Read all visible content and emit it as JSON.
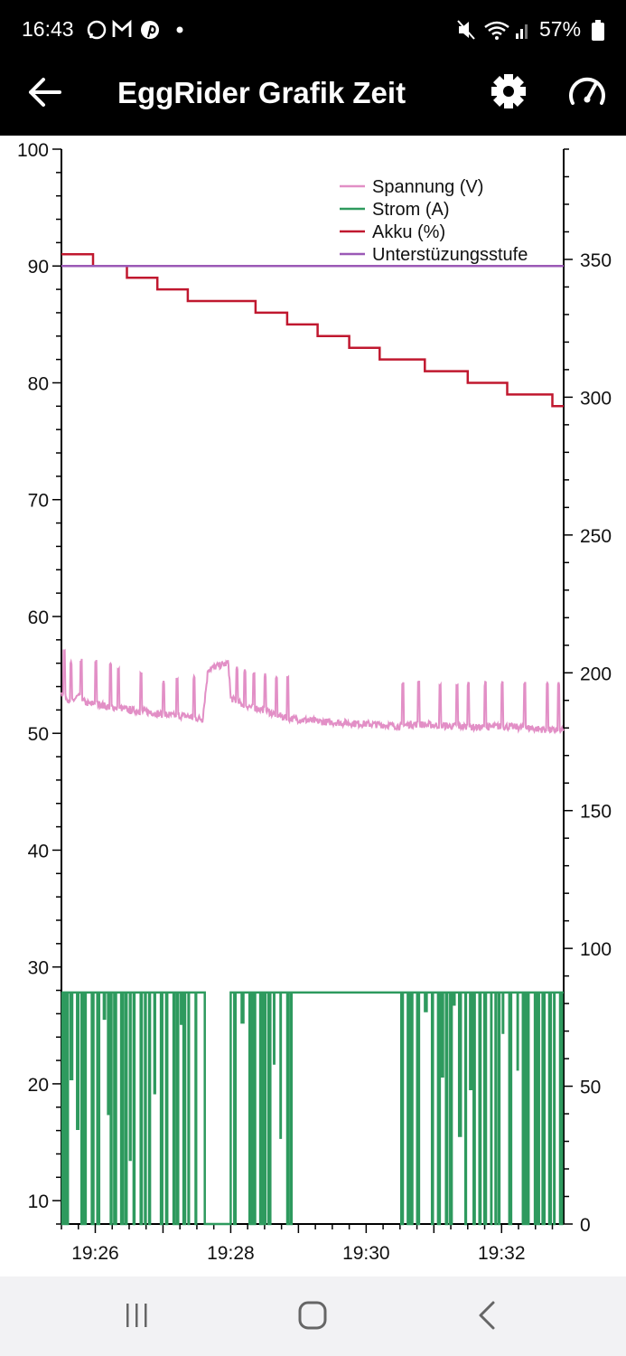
{
  "status_bar": {
    "time": "16:43",
    "battery_percent": "57%",
    "icons": [
      "whatsapp-icon",
      "gmail-icon",
      "pinterest-icon",
      "notification-dot",
      "mute-icon",
      "wifi-icon",
      "signal-icon",
      "battery-icon"
    ]
  },
  "app_bar": {
    "title": "EggRider Grafik Zeit",
    "back_icon": "arrow-left-icon",
    "settings_icon": "gear-icon",
    "speedometer_icon": "speedometer-icon"
  },
  "chart_data": {
    "type": "line",
    "title": "",
    "xlabel": "",
    "ylabel": "",
    "x_ticks": [
      "19:26",
      "19:28",
      "19:30",
      "19:32"
    ],
    "x_range": [
      "19:25:30",
      "19:32:55"
    ],
    "y_left": {
      "min": 8,
      "max": 100,
      "ticks": [
        10,
        20,
        30,
        40,
        50,
        60,
        70,
        80,
        90,
        100
      ]
    },
    "y_right": {
      "min": 0,
      "max": 390,
      "ticks": [
        0,
        50,
        100,
        150,
        200,
        250,
        300,
        350
      ]
    },
    "legend_position": "top-right",
    "grid": false,
    "series": [
      {
        "name": "Spannung (V)",
        "color": "#e28fc6",
        "axis": "left",
        "points": [
          [
            "19:25:30",
            53.5
          ],
          [
            "19:25:35",
            53
          ],
          [
            "19:25:40",
            52.8
          ],
          [
            "19:25:45",
            53.2
          ],
          [
            "19:25:50",
            52.7
          ],
          [
            "19:25:55",
            52.5
          ],
          [
            "19:26:00",
            52.6
          ],
          [
            "19:26:10",
            52.3
          ],
          [
            "19:26:20",
            52.2
          ],
          [
            "19:26:30",
            52
          ],
          [
            "19:26:40",
            51.9
          ],
          [
            "19:26:50",
            51.8
          ],
          [
            "19:27:00",
            51.6
          ],
          [
            "19:27:10",
            51.5
          ],
          [
            "19:27:20",
            51.5
          ],
          [
            "19:27:30",
            51.3
          ],
          [
            "19:27:35",
            51.2
          ],
          [
            "19:27:40",
            55.5
          ],
          [
            "19:27:50",
            55.8
          ],
          [
            "19:27:58",
            56
          ],
          [
            "19:28:00",
            53
          ],
          [
            "19:28:10",
            52.5
          ],
          [
            "19:28:20",
            52.2
          ],
          [
            "19:28:30",
            52
          ],
          [
            "19:28:40",
            51.6
          ],
          [
            "19:28:50",
            51.3
          ],
          [
            "19:29:00",
            51.2
          ],
          [
            "19:29:20",
            51
          ],
          [
            "19:29:40",
            50.9
          ],
          [
            "19:30:00",
            50.8
          ],
          [
            "19:30:20",
            50.7
          ],
          [
            "19:30:30",
            50.6
          ],
          [
            "19:30:40",
            50.8
          ],
          [
            "19:31:00",
            50.7
          ],
          [
            "19:31:20",
            50.6
          ],
          [
            "19:31:40",
            50.5
          ],
          [
            "19:32:00",
            50.6
          ],
          [
            "19:32:20",
            50.5
          ],
          [
            "19:32:40",
            50.3
          ],
          [
            "19:32:55",
            50.2
          ]
        ],
        "spikes": [
          [
            "19:25:32",
            57.2
          ],
          [
            "19:25:38",
            56.3
          ],
          [
            "19:25:47",
            56.4
          ],
          [
            "19:26:00",
            56.4
          ],
          [
            "19:26:13",
            56.2
          ],
          [
            "19:26:20",
            55.8
          ],
          [
            "19:26:40",
            55.4
          ],
          [
            "19:27:00",
            54.5
          ],
          [
            "19:27:12",
            54.8
          ],
          [
            "19:27:27",
            55
          ],
          [
            "19:28:05",
            55.7
          ],
          [
            "19:28:12",
            55.5
          ],
          [
            "19:28:20",
            55.4
          ],
          [
            "19:28:30",
            55.2
          ],
          [
            "19:28:40",
            55.1
          ],
          [
            "19:28:50",
            55
          ],
          [
            "19:30:32",
            54.5
          ],
          [
            "19:30:46",
            54.6
          ],
          [
            "19:31:05",
            54.4
          ],
          [
            "19:31:20",
            54.4
          ],
          [
            "19:31:30",
            54.4
          ],
          [
            "19:31:45",
            54.4
          ],
          [
            "19:32:00",
            54.4
          ],
          [
            "19:32:20",
            54.4
          ],
          [
            "19:32:40",
            54.4
          ],
          [
            "19:32:50",
            54.4
          ]
        ]
      },
      {
        "name": "Strom (A)",
        "color": "#2e9a5e",
        "axis": "right",
        "high_value": 84,
        "low_value": 0,
        "dense_switching_intervals": [
          [
            "19:25:30",
            "19:27:30"
          ],
          [
            "19:28:00",
            "19:28:55"
          ],
          [
            "19:30:30",
            "19:32:55"
          ]
        ],
        "high_intervals": [
          [
            "19:27:30",
            "19:27:37"
          ],
          [
            "19:28:55",
            "19:30:30"
          ]
        ],
        "low_intervals": [
          [
            "19:27:37",
            "19:28:00"
          ]
        ]
      },
      {
        "name": "Akku (%)",
        "color": "#c0182f",
        "axis": "left",
        "steps": [
          [
            "19:25:30",
            91
          ],
          [
            "19:25:58",
            90
          ],
          [
            "19:26:28",
            89
          ],
          [
            "19:26:55",
            88
          ],
          [
            "19:27:22",
            87
          ],
          [
            "19:28:22",
            86
          ],
          [
            "19:28:50",
            85
          ],
          [
            "19:29:17",
            84
          ],
          [
            "19:29:45",
            83
          ],
          [
            "19:30:12",
            82
          ],
          [
            "19:30:52",
            81
          ],
          [
            "19:31:30",
            80
          ],
          [
            "19:32:05",
            79
          ],
          [
            "19:32:45",
            78
          ],
          [
            "19:32:55",
            78
          ]
        ]
      },
      {
        "name": "Unterstüzungsstufe",
        "color": "#9b59b6",
        "axis": "left",
        "points": [
          [
            "19:25:30",
            90
          ],
          [
            "19:32:55",
            90
          ]
        ]
      }
    ]
  },
  "nav_bar": {
    "buttons": [
      "recent-apps-icon",
      "home-icon",
      "back-icon"
    ]
  }
}
